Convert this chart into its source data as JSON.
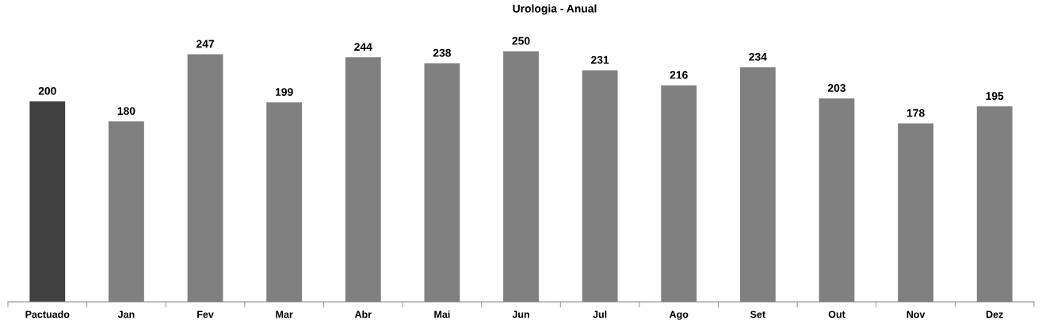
{
  "chart_data": {
    "type": "bar",
    "title": "Urologia - Anual",
    "categories": [
      "Pactuado",
      "Jan",
      "Fev",
      "Mar",
      "Abr",
      "Mai",
      "Jun",
      "Jul",
      "Ago",
      "Set",
      "Out",
      "Nov",
      "Dez"
    ],
    "values": [
      200,
      180,
      247,
      199,
      244,
      238,
      250,
      231,
      216,
      234,
      203,
      178,
      195
    ],
    "colors": [
      "#404040",
      "#808080",
      "#808080",
      "#808080",
      "#808080",
      "#808080",
      "#808080",
      "#808080",
      "#808080",
      "#808080",
      "#808080",
      "#808080",
      "#808080"
    ],
    "data_labels": true,
    "grid": false,
    "legend": false
  }
}
